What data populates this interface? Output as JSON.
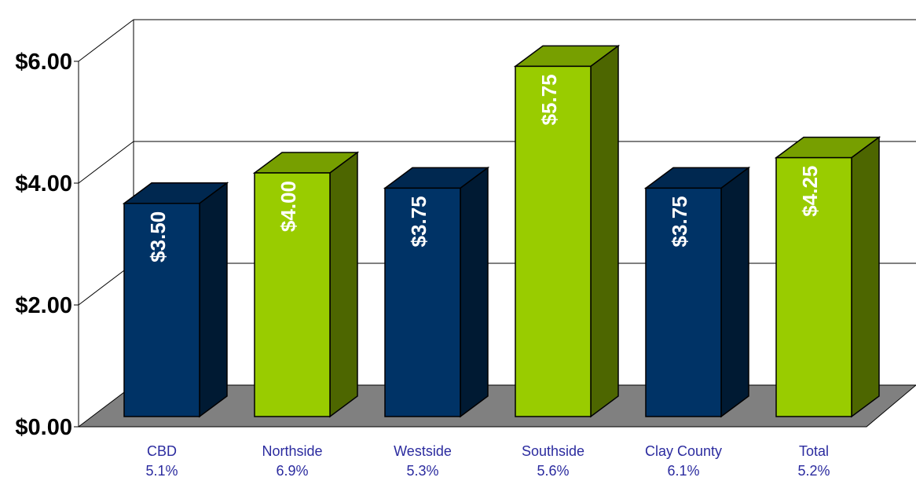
{
  "chart_data": {
    "type": "bar",
    "title": "",
    "xlabel": "",
    "ylabel": "",
    "ylim": [
      0,
      6
    ],
    "yticks": [
      "$0.00",
      "$2.00",
      "$4.00",
      "$6.00"
    ],
    "grid": true,
    "categories": [
      "CBD",
      "Northside",
      "Westside",
      "Southside",
      "Clay County",
      "Total"
    ],
    "sublabels": [
      "5.1%",
      "6.9%",
      "5.3%",
      "5.6%",
      "6.1%",
      "5.2%"
    ],
    "values": [
      3.5,
      4.0,
      3.75,
      5.75,
      3.75,
      4.25
    ],
    "data_labels": [
      "$3.50",
      "$4.00",
      "$3.75",
      "$5.75",
      "$3.75",
      "$4.25"
    ],
    "bar_colors": [
      "#003366",
      "#99cc00",
      "#003366",
      "#99cc00",
      "#003366",
      "#99cc00"
    ],
    "style": "3d-column"
  }
}
